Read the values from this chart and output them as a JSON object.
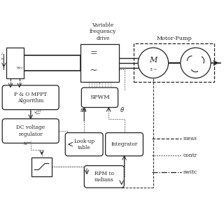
{
  "line_color": "#222222",
  "bg_color": "#ffffff",
  "legend_styles": [
    "dashed",
    "dotted",
    "dashdot"
  ],
  "legend_labels": [
    "meas",
    "contr",
    "switc"
  ]
}
